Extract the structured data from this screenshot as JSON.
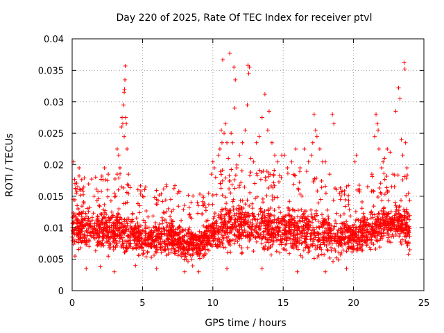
{
  "chart_data": {
    "type": "scatter",
    "title": "Day 220 of 2025, Rate Of TEC Index for receiver ptvl",
    "xlabel": "GPS time / hours",
    "ylabel": "ROTI / TECUs",
    "xlim": [
      0,
      25
    ],
    "ylim": [
      0,
      0.04
    ],
    "xticks": [
      "0",
      "5",
      "10",
      "15",
      "20",
      "25"
    ],
    "yticks": [
      "0",
      "0.005",
      "0.01",
      "0.015",
      "0.02",
      "0.025",
      "0.03",
      "0.035",
      "0.04"
    ],
    "grid": true,
    "marker": "+",
    "color": "#ff0000",
    "series": [
      {
        "points": [
          [
            0.1,
            0.0205
          ],
          [
            0.2,
            0.017
          ],
          [
            0.3,
            0.0155
          ],
          [
            0.5,
            0.0195
          ],
          [
            0.2,
            0.0055
          ],
          [
            0.6,
            0.016
          ],
          [
            2.3,
            0.0195
          ],
          [
            2.5,
            0.0175
          ],
          [
            3.0,
            0.0155
          ],
          [
            3.2,
            0.0225
          ],
          [
            3.3,
            0.0215
          ],
          [
            3.4,
            0.0195
          ],
          [
            3.5,
            0.026
          ],
          [
            3.55,
            0.0275
          ],
          [
            3.6,
            0.0265
          ],
          [
            3.65,
            0.0295
          ],
          [
            3.7,
            0.0315
          ],
          [
            3.72,
            0.032
          ],
          [
            3.75,
            0.0335
          ],
          [
            3.78,
            0.0357
          ],
          [
            3.8,
            0.0275
          ],
          [
            3.85,
            0.0265
          ],
          [
            3.9,
            0.0225
          ],
          [
            3.7,
            0.0245
          ],
          [
            4.0,
            0.0185
          ],
          [
            3.5,
            0.0165
          ],
          [
            3.2,
            0.0185
          ],
          [
            5.0,
            0.015
          ],
          [
            4.8,
            0.0135
          ],
          [
            6.0,
            0.0145
          ],
          [
            7.0,
            0.0145
          ],
          [
            7.5,
            0.0155
          ],
          [
            8.5,
            0.0115
          ],
          [
            9.3,
            0.0135
          ],
          [
            9.7,
            0.0155
          ],
          [
            9.9,
            0.0185
          ],
          [
            10.0,
            0.0205
          ],
          [
            10.1,
            0.0195
          ],
          [
            10.2,
            0.018
          ],
          [
            10.4,
            0.0215
          ],
          [
            10.5,
            0.0225
          ],
          [
            10.6,
            0.0255
          ],
          [
            10.65,
            0.0235
          ],
          [
            10.7,
            0.0367
          ],
          [
            10.8,
            0.025
          ],
          [
            10.9,
            0.0265
          ],
          [
            11.0,
            0.0235
          ],
          [
            11.1,
            0.021
          ],
          [
            11.2,
            0.0377
          ],
          [
            11.3,
            0.025
          ],
          [
            11.4,
            0.0235
          ],
          [
            11.5,
            0.0355
          ],
          [
            11.55,
            0.029
          ],
          [
            11.6,
            0.0335
          ],
          [
            11.7,
            0.0195
          ],
          [
            11.9,
            0.0215
          ],
          [
            12.1,
            0.0235
          ],
          [
            12.3,
            0.0255
          ],
          [
            12.45,
            0.0295
          ],
          [
            12.5,
            0.0358
          ],
          [
            12.55,
            0.0345
          ],
          [
            12.6,
            0.0355
          ],
          [
            12.7,
            0.021
          ],
          [
            12.9,
            0.0205
          ],
          [
            13.1,
            0.0235
          ],
          [
            13.3,
            0.0245
          ],
          [
            13.5,
            0.0275
          ],
          [
            13.7,
            0.0312
          ],
          [
            13.9,
            0.0255
          ],
          [
            14.0,
            0.0285
          ],
          [
            14.2,
            0.0235
          ],
          [
            14.4,
            0.0215
          ],
          [
            14.6,
            0.0205
          ],
          [
            14.9,
            0.0215
          ],
          [
            15.1,
            0.0215
          ],
          [
            15.3,
            0.0195
          ],
          [
            15.6,
            0.0205
          ],
          [
            15.9,
            0.0225
          ],
          [
            16.2,
            0.0195
          ],
          [
            16.5,
            0.0225
          ],
          [
            16.8,
            0.0205
          ],
          [
            17.0,
            0.0215
          ],
          [
            17.1,
            0.0235
          ],
          [
            17.2,
            0.028
          ],
          [
            17.3,
            0.0255
          ],
          [
            17.4,
            0.0245
          ],
          [
            17.6,
            0.0225
          ],
          [
            17.8,
            0.0205
          ],
          [
            18.0,
            0.0205
          ],
          [
            18.3,
            0.0185
          ],
          [
            18.5,
            0.028
          ],
          [
            18.6,
            0.0265
          ],
          [
            19.0,
            0.0155
          ],
          [
            19.5,
            0.0165
          ],
          [
            20.1,
            0.0205
          ],
          [
            20.2,
            0.0215
          ],
          [
            21.0,
            0.0165
          ],
          [
            21.3,
            0.0185
          ],
          [
            21.5,
            0.0245
          ],
          [
            21.6,
            0.028
          ],
          [
            21.7,
            0.0265
          ],
          [
            21.75,
            0.0255
          ],
          [
            21.8,
            0.0225
          ],
          [
            22.0,
            0.0195
          ],
          [
            22.1,
            0.0205
          ],
          [
            22.2,
            0.021
          ],
          [
            22.4,
            0.0225
          ],
          [
            22.6,
            0.022
          ],
          [
            22.8,
            0.0185
          ],
          [
            22.9,
            0.0165
          ],
          [
            23.0,
            0.0285
          ],
          [
            23.2,
            0.0322
          ],
          [
            23.3,
            0.0305
          ],
          [
            23.4,
            0.024
          ],
          [
            23.5,
            0.0215
          ],
          [
            23.6,
            0.0362
          ],
          [
            23.65,
            0.0352
          ],
          [
            23.7,
            0.0235
          ],
          [
            23.8,
            0.0195
          ],
          [
            23.9,
            0.0155
          ],
          [
            1.0,
            0.0035
          ],
          [
            2.0,
            0.0038
          ],
          [
            3.0,
            0.003
          ],
          [
            4.5,
            0.004
          ],
          [
            6.0,
            0.0035
          ],
          [
            8.0,
            0.003
          ],
          [
            9.0,
            0.003
          ],
          [
            11.0,
            0.0035
          ],
          [
            13.5,
            0.0035
          ],
          [
            16.0,
            0.003
          ],
          [
            18.0,
            0.003
          ],
          [
            19.5,
            0.0035
          ],
          [
            23.9,
            0.0058
          ],
          [
            24.0,
            0.0065
          ],
          [
            23.95,
            0.0075
          ],
          [
            23.9,
            0.009
          ]
        ]
      }
    ],
    "envelope": [
      [
        0.0,
        0.0065,
        0.0135
      ],
      [
        1.0,
        0.006,
        0.013
      ],
      [
        2.0,
        0.006,
        0.0135
      ],
      [
        3.0,
        0.0055,
        0.014
      ],
      [
        4.0,
        0.0055,
        0.013
      ],
      [
        5.0,
        0.005,
        0.0115
      ],
      [
        6.0,
        0.005,
        0.0115
      ],
      [
        7.0,
        0.005,
        0.0125
      ],
      [
        8.0,
        0.0045,
        0.0105
      ],
      [
        9.0,
        0.0045,
        0.0105
      ],
      [
        10.0,
        0.0055,
        0.0135
      ],
      [
        11.0,
        0.006,
        0.015
      ],
      [
        12.0,
        0.006,
        0.015
      ],
      [
        13.0,
        0.0055,
        0.0145
      ],
      [
        14.0,
        0.0055,
        0.0145
      ],
      [
        15.0,
        0.0055,
        0.014
      ],
      [
        16.0,
        0.005,
        0.014
      ],
      [
        17.0,
        0.005,
        0.014
      ],
      [
        18.0,
        0.005,
        0.013
      ],
      [
        19.0,
        0.005,
        0.0115
      ],
      [
        20.0,
        0.0055,
        0.012
      ],
      [
        21.0,
        0.006,
        0.013
      ],
      [
        22.0,
        0.0065,
        0.014
      ],
      [
        23.0,
        0.0075,
        0.0145
      ],
      [
        24.0,
        0.0065,
        0.0135
      ]
    ]
  }
}
